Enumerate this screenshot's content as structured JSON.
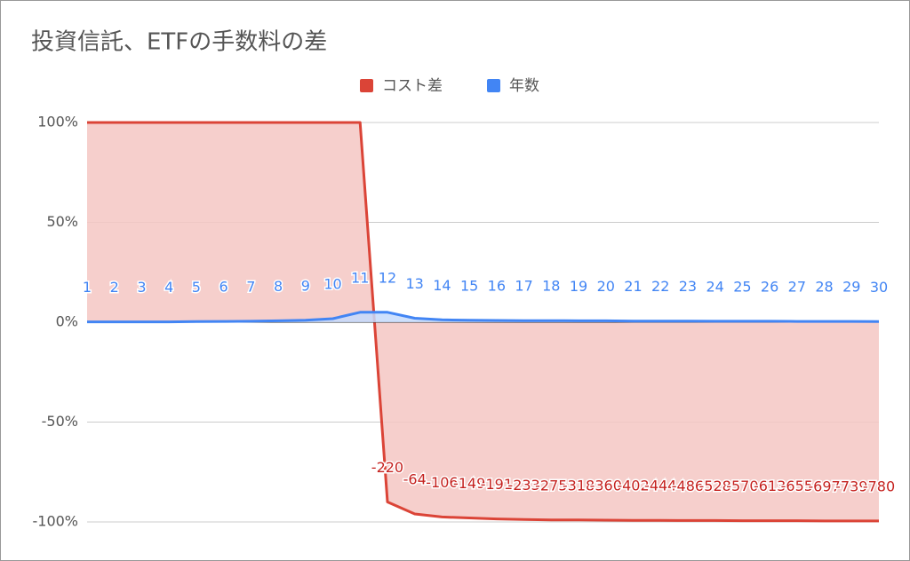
{
  "chart_data": {
    "type": "area",
    "title": "投資信託、ETFの手数料の差",
    "categories": [
      1,
      2,
      3,
      4,
      5,
      6,
      7,
      8,
      9,
      10,
      11,
      12,
      13,
      14,
      15,
      16,
      17,
      18,
      19,
      20,
      21,
      22,
      23,
      24,
      25,
      26,
      27,
      28,
      29,
      30
    ],
    "series": [
      {
        "name": "コスト差",
        "color": "#db4437",
        "fill": "#f4c7c3",
        "values": [
          100,
          100,
          100,
          100,
          100,
          100,
          100,
          100,
          100,
          100,
          100,
          -90,
          -96,
          -97.5,
          -98,
          -98.5,
          -98.8,
          -99,
          -99,
          -99.1,
          -99.2,
          -99.2,
          -99.3,
          -99.3,
          -99.4,
          -99.4,
          -99.4,
          -99.5,
          -99.5,
          -99.5
        ],
        "data_labels": [
          null,
          null,
          null,
          null,
          null,
          null,
          null,
          null,
          null,
          null,
          null,
          "-220",
          "-64",
          "-106",
          "-149",
          "-191",
          "-233",
          "-275",
          "-318",
          "-360",
          "-402",
          "-444",
          "-486",
          "-528",
          "-570",
          "-613",
          "-655",
          "-697",
          "-739",
          "-780"
        ]
      },
      {
        "name": "年数",
        "color": "#4285f4",
        "fill": "#c6dafc",
        "values": [
          0.2,
          0.2,
          0.2,
          0.2,
          0.3,
          0.4,
          0.5,
          0.7,
          1,
          1.8,
          5,
          5,
          2,
          1.2,
          1,
          0.9,
          0.8,
          0.8,
          0.7,
          0.7,
          0.6,
          0.6,
          0.6,
          0.5,
          0.5,
          0.5,
          0.4,
          0.4,
          0.4,
          0.3
        ]
      }
    ],
    "ylim": [
      -105,
      105
    ],
    "yticks": [
      {
        "value": 100,
        "label": "100%"
      },
      {
        "value": 50,
        "label": "50%"
      },
      {
        "value": 0,
        "label": "0%"
      },
      {
        "value": -50,
        "label": "-50%"
      },
      {
        "value": -100,
        "label": "-100%"
      }
    ],
    "grid": true
  }
}
